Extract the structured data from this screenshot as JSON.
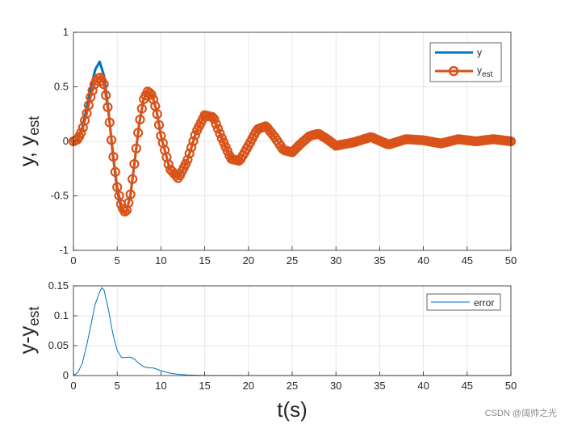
{
  "chart_data": [
    {
      "type": "line",
      "ylabel_main": "y, y",
      "ylabel_sub": "est",
      "xlim": [
        0,
        50
      ],
      "ylim": [
        -1,
        1
      ],
      "xticks": [
        0,
        5,
        10,
        15,
        20,
        25,
        30,
        35,
        40,
        45,
        50
      ],
      "yticks": [
        -1,
        -0.5,
        0,
        0.5,
        1
      ],
      "ytick_labels": [
        "-1",
        "-0.5",
        "0",
        "0.5",
        "1"
      ],
      "grid": true,
      "legend_position": "top-right",
      "series": [
        {
          "name": "y",
          "color": "#0072BD",
          "marker": "none",
          "x": [
            0,
            0.5,
            1,
            1.5,
            2,
            2.5,
            3,
            3.5,
            4,
            4.5,
            5,
            5.5,
            6,
            6.5,
            7,
            7.5,
            8,
            8.5,
            9,
            9.5,
            10,
            11,
            12,
            13,
            14,
            15,
            16,
            17,
            18,
            19,
            20,
            21,
            22,
            23,
            24,
            25,
            26,
            27,
            28,
            29,
            30,
            32,
            34,
            36,
            38,
            40,
            42,
            44,
            46,
            48,
            50
          ],
          "y": [
            0,
            0.02,
            0.12,
            0.3,
            0.5,
            0.66,
            0.73,
            0.6,
            0.28,
            -0.12,
            -0.45,
            -0.63,
            -0.66,
            -0.5,
            -0.18,
            0.15,
            0.38,
            0.46,
            0.42,
            0.28,
            0.05,
            -0.25,
            -0.34,
            -0.18,
            0.08,
            0.24,
            0.22,
            0.02,
            -0.16,
            -0.18,
            -0.04,
            0.11,
            0.14,
            0.04,
            -0.08,
            -0.1,
            -0.02,
            0.05,
            0.07,
            0.02,
            -0.04,
            -0.01,
            0.04,
            -0.03,
            0.02,
            0.01,
            -0.02,
            0.02,
            0.0,
            0.02,
            0.0
          ]
        },
        {
          "name": "y",
          "name_sub": "est",
          "color": "#D95319",
          "marker": "circle",
          "x": [
            0,
            0.5,
            1,
            1.5,
            2,
            2.5,
            3,
            3.5,
            4,
            4.5,
            5,
            5.5,
            6,
            6.5,
            7,
            7.5,
            8,
            8.5,
            9,
            9.5,
            10,
            11,
            12,
            13,
            14,
            15,
            16,
            17,
            18,
            19,
            20,
            21,
            22,
            23,
            24,
            25,
            26,
            27,
            28,
            29,
            30,
            32,
            34,
            36,
            38,
            40,
            42,
            44,
            46,
            48,
            50
          ],
          "y": [
            0,
            0.02,
            0.1,
            0.25,
            0.42,
            0.55,
            0.59,
            0.52,
            0.27,
            -0.1,
            -0.42,
            -0.6,
            -0.66,
            -0.5,
            -0.18,
            0.15,
            0.38,
            0.46,
            0.42,
            0.28,
            0.05,
            -0.25,
            -0.34,
            -0.18,
            0.08,
            0.24,
            0.22,
            0.02,
            -0.16,
            -0.18,
            -0.04,
            0.11,
            0.14,
            0.04,
            -0.08,
            -0.1,
            -0.02,
            0.05,
            0.07,
            0.02,
            -0.04,
            -0.01,
            0.04,
            -0.03,
            0.02,
            0.01,
            -0.02,
            0.02,
            0.0,
            0.02,
            0.0
          ]
        }
      ]
    },
    {
      "type": "line",
      "ylabel_main": "y-y",
      "ylabel_sub": "est",
      "xlabel": "t(s)",
      "xlim": [
        0,
        50
      ],
      "ylim": [
        0,
        0.15
      ],
      "xticks": [
        0,
        5,
        10,
        15,
        20,
        25,
        30,
        35,
        40,
        45,
        50
      ],
      "yticks": [
        0,
        0.05,
        0.1,
        0.15
      ],
      "ytick_labels": [
        "0",
        "0.05",
        "0.1",
        "0.15"
      ],
      "grid": true,
      "legend_position": "top-right",
      "series": [
        {
          "name": "error",
          "color": "#0072BD",
          "marker": "none",
          "x": [
            0,
            0.5,
            1,
            1.5,
            2,
            2.5,
            3,
            3.25,
            3.5,
            4,
            4.5,
            5,
            5.5,
            6,
            6.5,
            7,
            7.5,
            8,
            8.5,
            9,
            9.5,
            10,
            11,
            12,
            13,
            14,
            15,
            20,
            30,
            40,
            50
          ],
          "y": [
            0,
            0.005,
            0.02,
            0.05,
            0.085,
            0.12,
            0.14,
            0.147,
            0.143,
            0.11,
            0.07,
            0.042,
            0.03,
            0.03,
            0.031,
            0.027,
            0.02,
            0.015,
            0.013,
            0.013,
            0.011,
            0.008,
            0.004,
            0.002,
            0.001,
            0.0005,
            0.0002,
            0,
            0,
            0,
            0
          ]
        }
      ]
    }
  ],
  "watermark": "CSDN @阔帅之光"
}
